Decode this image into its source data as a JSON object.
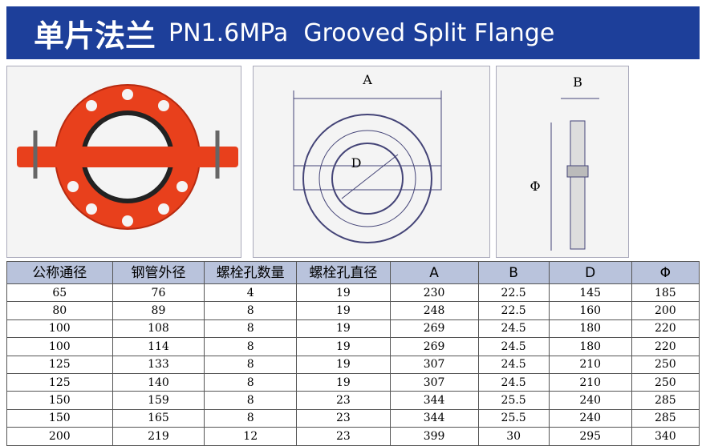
{
  "header": {
    "title_cn": "单片法兰",
    "title_en": "PN1.6MPa  Grooved Split Flange"
  },
  "diagrams": {
    "front_width": "A",
    "front_diameter": "D",
    "side_width": "B",
    "side_diameter": "Φ"
  },
  "table": {
    "headers": [
      "公称通径",
      "钢管外径",
      "螺栓孔数量",
      "螺栓孔直径",
      "A",
      "B",
      "D",
      "Φ"
    ],
    "rows": [
      [
        65,
        76,
        4,
        19,
        230,
        22.5,
        145,
        185
      ],
      [
        80,
        89,
        8,
        19,
        248,
        22.5,
        160,
        200
      ],
      [
        100,
        108,
        8,
        19,
        269,
        24.5,
        180,
        220
      ],
      [
        100,
        114,
        8,
        19,
        269,
        24.5,
        180,
        220
      ],
      [
        125,
        133,
        8,
        19,
        307,
        24.5,
        210,
        250
      ],
      [
        125,
        140,
        8,
        19,
        307,
        24.5,
        210,
        250
      ],
      [
        150,
        159,
        8,
        23,
        344,
        25.5,
        240,
        285
      ],
      [
        150,
        165,
        8,
        23,
        344,
        25.5,
        240,
        285
      ],
      [
        200,
        219,
        12,
        23,
        399,
        30,
        295,
        340
      ]
    ]
  }
}
